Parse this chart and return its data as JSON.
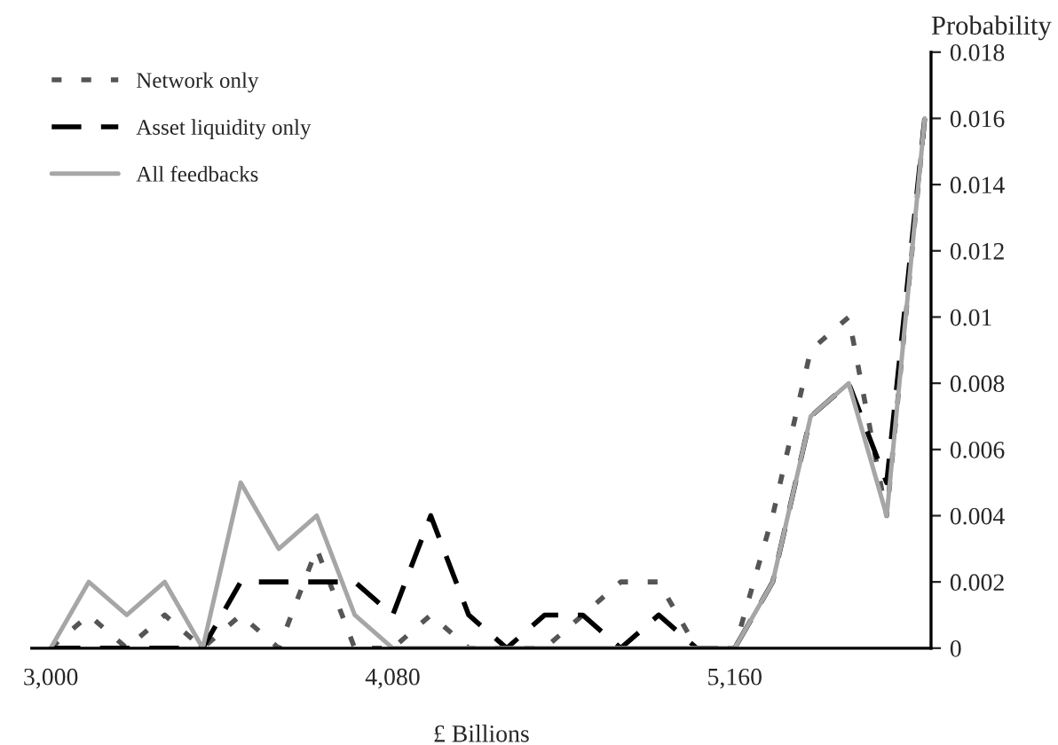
{
  "chart_data": {
    "type": "line",
    "xlabel": "£ Billions",
    "ylabel": "Probability",
    "x": [
      3000,
      3120,
      3240,
      3360,
      3480,
      3600,
      3720,
      3840,
      3960,
      4080,
      4200,
      4320,
      4440,
      4560,
      4680,
      4800,
      4920,
      5040,
      5160,
      5280,
      5400,
      5520,
      5640,
      5760
    ],
    "series": [
      {
        "name": "Network only",
        "color": "#555555",
        "line_style": "dotted",
        "values": [
          0,
          0.001,
          0,
          0.001,
          0,
          0.001,
          0,
          0.003,
          0,
          0,
          0.001,
          0,
          0,
          0,
          0.001,
          0.002,
          0.002,
          0,
          0,
          0.004,
          0.009,
          0.01,
          0.004,
          0.016
        ]
      },
      {
        "name": "Asset liquidity only",
        "color": "#000000",
        "line_style": "dashed",
        "values": [
          0,
          0,
          0,
          0,
          0,
          0.002,
          0.002,
          0.002,
          0.002,
          0.001,
          0.004,
          0.001,
          0,
          0.001,
          0.001,
          0,
          0.001,
          0,
          0,
          0.002,
          0.007,
          0.008,
          0.005,
          0.016
        ]
      },
      {
        "name": "All feedbacks",
        "color": "#a6a6a6",
        "line_style": "solid",
        "values": [
          0,
          0.002,
          0.001,
          0.002,
          0,
          0.005,
          0.003,
          0.004,
          0.001,
          0,
          0,
          0,
          0,
          0,
          0,
          0,
          0,
          0,
          0,
          0.002,
          0.007,
          0.008,
          0.004,
          0.016
        ]
      }
    ],
    "xlim": [
      2940,
      5780
    ],
    "xticks": [
      {
        "value": 3000,
        "label": "3,000"
      },
      {
        "value": 4080,
        "label": "4,080"
      },
      {
        "value": 5160,
        "label": "5,160"
      }
    ],
    "ylim": [
      0,
      0.018
    ],
    "yticks": [
      0,
      0.002,
      0.004,
      0.006,
      0.008,
      0.01,
      0.012,
      0.014,
      0.016,
      0.018
    ],
    "grid": false,
    "legend": "top left",
    "marker": "none"
  }
}
